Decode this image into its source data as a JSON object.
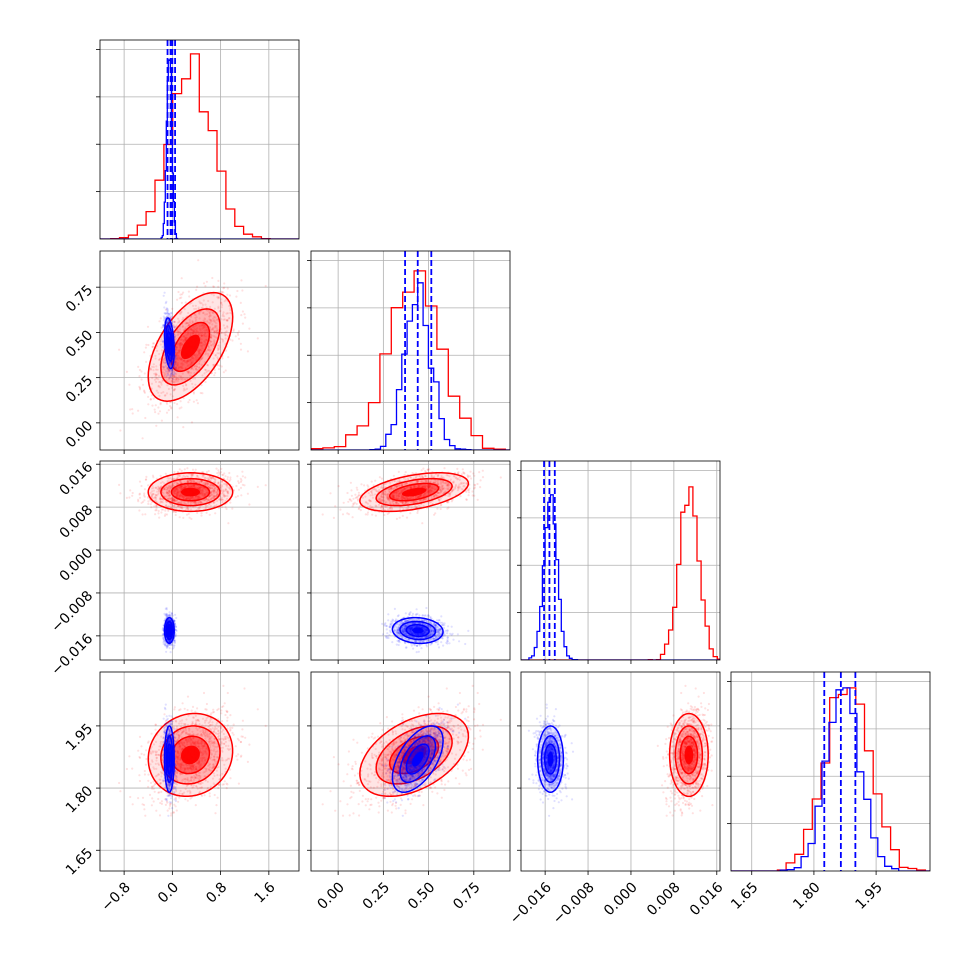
{
  "chart_data": {
    "type": "corner",
    "grid": true,
    "parameters": [
      {
        "range": [
          -1.2,
          2.1
        ],
        "ticks": [
          "−0.8",
          "0.0",
          "0.8",
          "1.6"
        ],
        "tick_values": [
          -0.8,
          0.0,
          0.8,
          1.6
        ]
      },
      {
        "range": [
          -0.15,
          0.95
        ],
        "ticks": [
          "0.00",
          "0.25",
          "0.50",
          "0.75"
        ],
        "tick_values": [
          0.0,
          0.25,
          0.5,
          0.75
        ]
      },
      {
        "range": [
          -0.0205,
          0.0166
        ],
        "ticks": [
          "−0.016",
          "−0.008",
          "0.000",
          "0.008",
          "0.016"
        ],
        "tick_values": [
          -0.016,
          -0.008,
          0.0,
          0.008,
          0.016
        ]
      },
      {
        "range": [
          1.6,
          2.08
        ],
        "ticks": [
          "1.65",
          "1.80",
          "1.95"
        ],
        "tick_values": [
          1.65,
          1.8,
          1.95
        ]
      }
    ],
    "series": [
      {
        "color": "#ff0000",
        "means": [
          0.3,
          0.42,
          0.0108,
          1.88
        ],
        "sds": [
          0.35,
          0.15,
          0.0018,
          0.05
        ],
        "corr": [
          [
            0,
            1,
            0.55
          ],
          [
            1,
            2,
            0.45
          ],
          [
            1,
            3,
            0.45
          ],
          [
            0,
            3,
            0.1
          ]
        ],
        "hist_scale": [
          0.93,
          0.9,
          0.87,
          0.92
        ]
      },
      {
        "color": "#0000ff",
        "means": [
          -0.05,
          0.44,
          -0.015,
          1.87
        ],
        "sds": [
          0.04,
          0.07,
          0.0012,
          0.04
        ],
        "corr": [
          [
            0,
            1,
            -0.3
          ],
          [
            1,
            3,
            0.55
          ],
          [
            1,
            2,
            -0.1
          ]
        ],
        "hist_scale": [
          0.9,
          0.84,
          0.83,
          0.92
        ],
        "quantile_lines": [
          [
            -0.08,
            -0.03,
            0.0,
            0.045
          ],
          [
            0.37,
            0.44,
            0.515
          ],
          [
            -0.0162,
            -0.0152,
            -0.0142
          ],
          [
            1.825,
            1.865,
            1.9
          ]
        ]
      }
    ]
  }
}
